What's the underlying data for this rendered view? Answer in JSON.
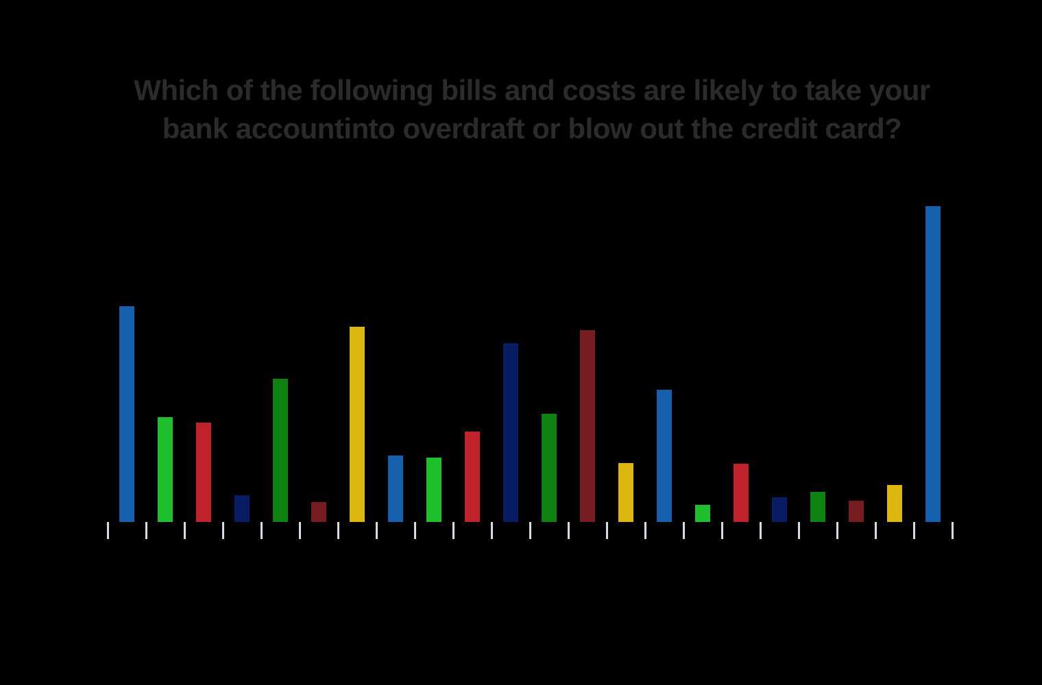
{
  "page": {
    "background_color": "#000000"
  },
  "chart": {
    "title_line1": "Which of the following bills and costs are likely to take your",
    "title_line2": "bank accountinto overdraft or blow out the credit card?",
    "title_color": "#2b2b2b",
    "tick_color": "#d4dbe9"
  },
  "chart_data": {
    "type": "bar",
    "title": "Which of the following bills and costs are likely to take your bank accountinto overdraft or blow out the credit card?",
    "xlabel": "",
    "ylabel": "",
    "axis_tick_labels_visible": false,
    "category_labels_visible": false,
    "legend": "none",
    "grid": false,
    "x_tick_count": 23,
    "ylim": [
      0,
      50
    ],
    "value_unit": "percent (estimated from bar heights; no axis scale labels are visible in the image)",
    "values": [
      31.5,
      15.3,
      14.5,
      3.9,
      20.9,
      2.9,
      28.5,
      9.7,
      9.4,
      13.2,
      26.1,
      15.8,
      28.0,
      8.6,
      19.3,
      2.5,
      8.5,
      3.6,
      4.4,
      3.1,
      5.4,
      46.1
    ],
    "bar_count": 22,
    "palette_cycle": [
      "#1560ac",
      "#1ec12d",
      "#c0222c",
      "#071c63",
      "#0e8111",
      "#771c21",
      "#dcb70f"
    ]
  }
}
